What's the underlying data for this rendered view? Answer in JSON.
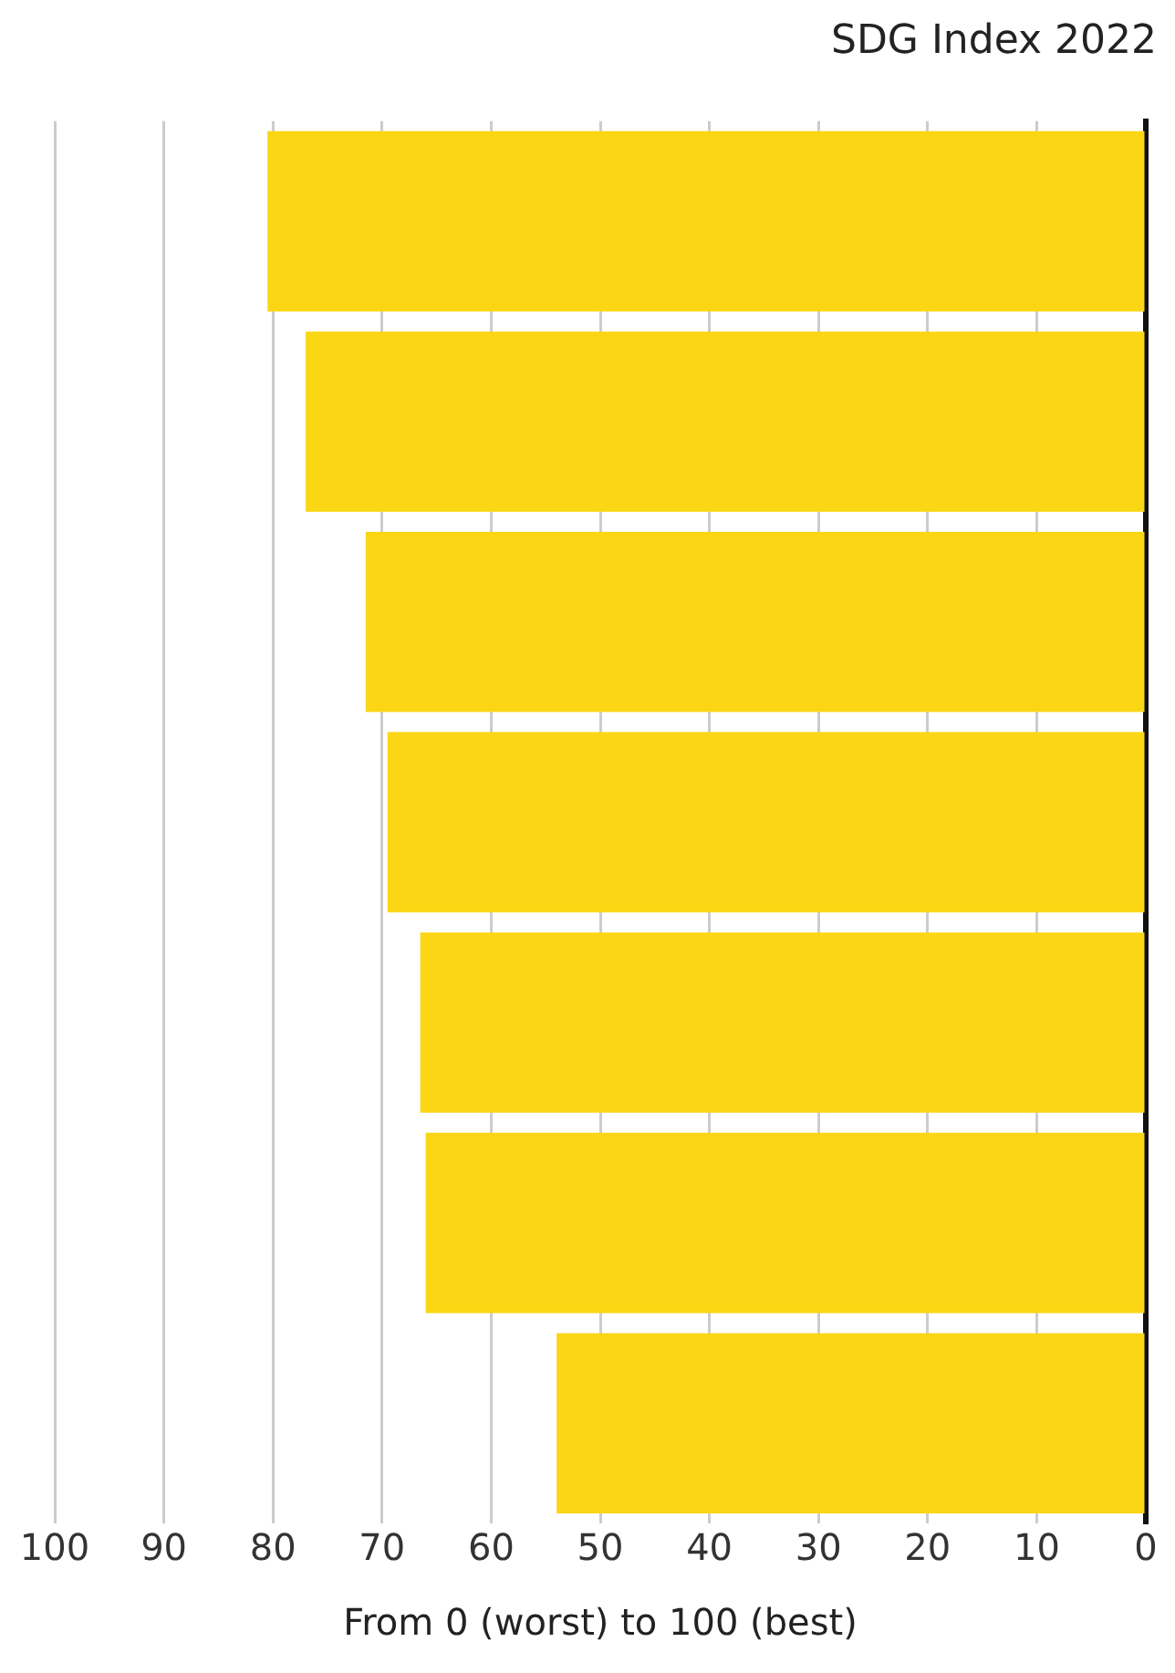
{
  "chart_data": {
    "type": "bar",
    "orientation": "horizontal",
    "title": "SDG Index 2022",
    "xlabel": "From 0 (worst) to 100 (best)",
    "categories": [
      null,
      null,
      null,
      null,
      null,
      null,
      null
    ],
    "values": [
      80.5,
      77,
      71.5,
      69.5,
      66.5,
      66,
      54
    ],
    "color": "#fbd614",
    "xlim": [
      100,
      0
    ],
    "xticks": [
      100,
      90,
      80,
      70,
      60,
      50,
      40,
      30,
      20,
      10,
      0
    ],
    "grid": "x",
    "legend": false
  }
}
